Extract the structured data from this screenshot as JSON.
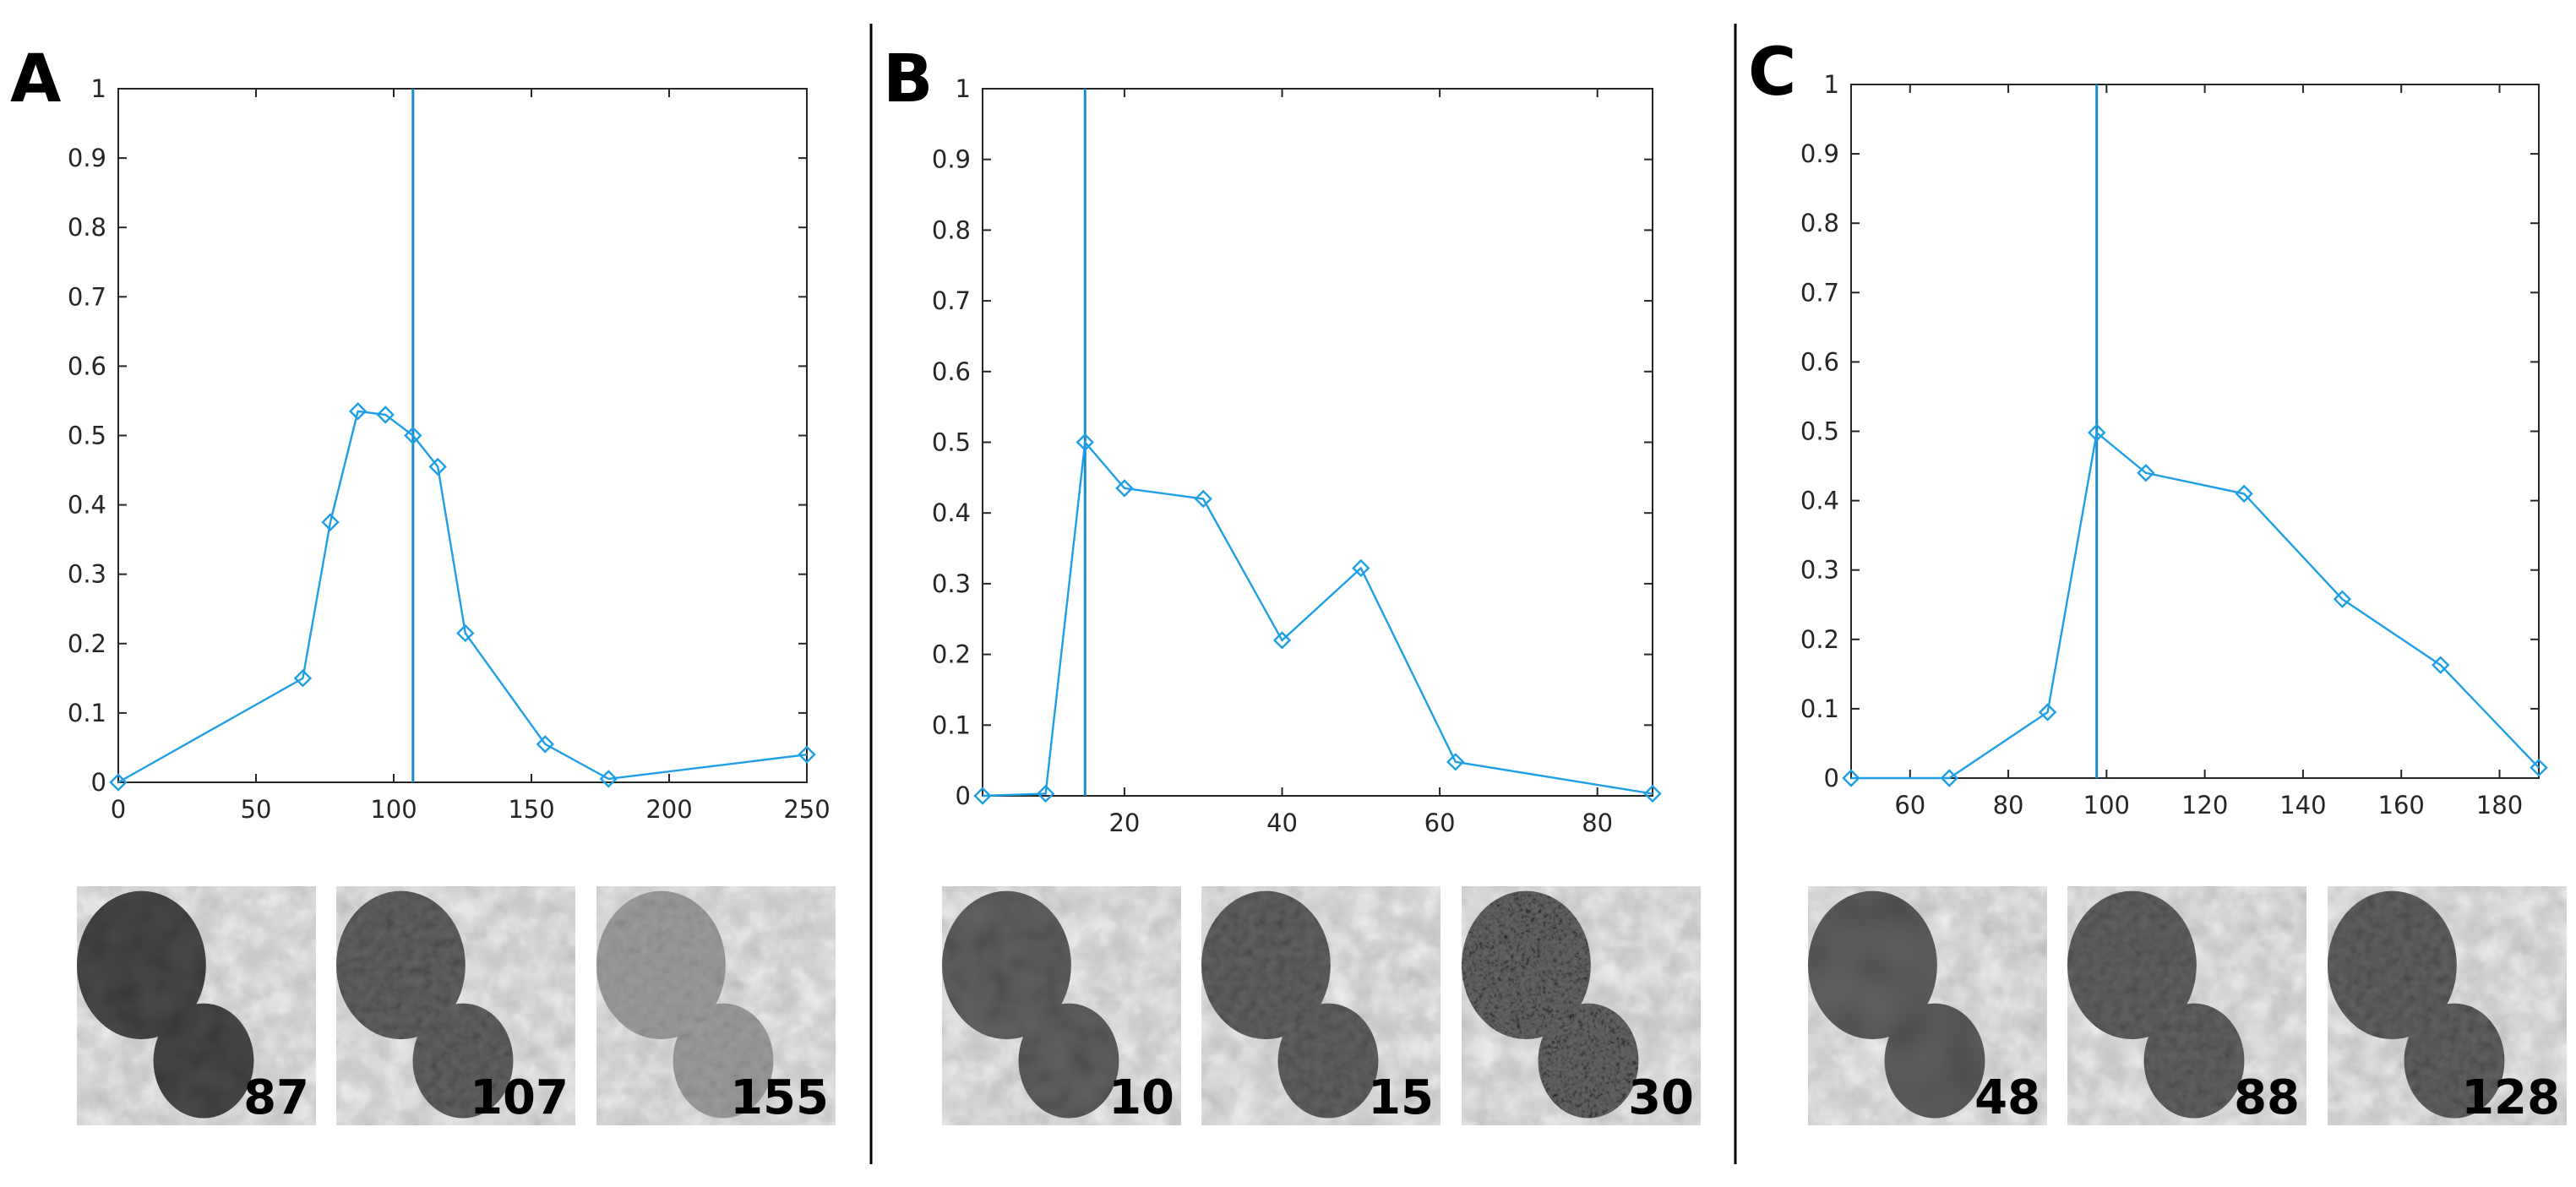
{
  "colors": {
    "series": "#1e9fe6",
    "marker_line": "#1a8cc9",
    "axis": "#262626",
    "divider": "#000000"
  },
  "chart_data": [
    {
      "panel_label": "A",
      "type": "line",
      "marker": "diamond",
      "xlim": [
        0,
        250
      ],
      "ylim": [
        0,
        1
      ],
      "xticks": [
        0,
        50,
        100,
        150,
        200,
        250
      ],
      "yticks": [
        0,
        0.1,
        0.2,
        0.3,
        0.4,
        0.5,
        0.6,
        0.7,
        0.8,
        0.9,
        1
      ],
      "vline_x": 107,
      "x": [
        0,
        67,
        77,
        87,
        97,
        107,
        116,
        126,
        155,
        178,
        250
      ],
      "y": [
        0,
        0.15,
        0.375,
        0.535,
        0.53,
        0.5,
        0.455,
        0.215,
        0.055,
        0.005,
        0.04
      ],
      "thumbnails": [
        {
          "label": "87",
          "variant": "dark"
        },
        {
          "label": "107",
          "variant": "medium"
        },
        {
          "label": "155",
          "variant": "faint"
        }
      ]
    },
    {
      "panel_label": "B",
      "type": "line",
      "marker": "diamond",
      "xlim": [
        2,
        87
      ],
      "ylim": [
        0,
        1
      ],
      "xticks": [
        20,
        40,
        60,
        80
      ],
      "yticks": [
        0,
        0.1,
        0.2,
        0.3,
        0.4,
        0.5,
        0.6,
        0.7,
        0.8,
        0.9,
        1
      ],
      "vline_x": 15,
      "x": [
        2,
        10,
        15,
        20,
        30,
        40,
        50,
        62,
        87
      ],
      "y": [
        0,
        0.003,
        0.5,
        0.435,
        0.42,
        0.22,
        0.322,
        0.048,
        0.003
      ],
      "thumbnails": [
        {
          "label": "10",
          "variant": "smooth"
        },
        {
          "label": "15",
          "variant": "medium"
        },
        {
          "label": "30",
          "variant": "noisy"
        }
      ]
    },
    {
      "panel_label": "C",
      "type": "line",
      "marker": "diamond",
      "xlim": [
        48,
        188
      ],
      "ylim": [
        0,
        1
      ],
      "xticks": [
        60,
        80,
        100,
        120,
        140,
        160,
        180
      ],
      "yticks": [
        0,
        0.1,
        0.2,
        0.3,
        0.4,
        0.5,
        0.6,
        0.7,
        0.8,
        0.9,
        1
      ],
      "vline_x": 98,
      "x": [
        48,
        68,
        88,
        98,
        108,
        128,
        148,
        168,
        188
      ],
      "y": [
        0,
        0,
        0.095,
        0.498,
        0.44,
        0.41,
        0.258,
        0.163,
        0.015
      ],
      "thumbnails": [
        {
          "label": "48",
          "variant": "blurry"
        },
        {
          "label": "88",
          "variant": "medium"
        },
        {
          "label": "128",
          "variant": "textured"
        }
      ]
    }
  ]
}
